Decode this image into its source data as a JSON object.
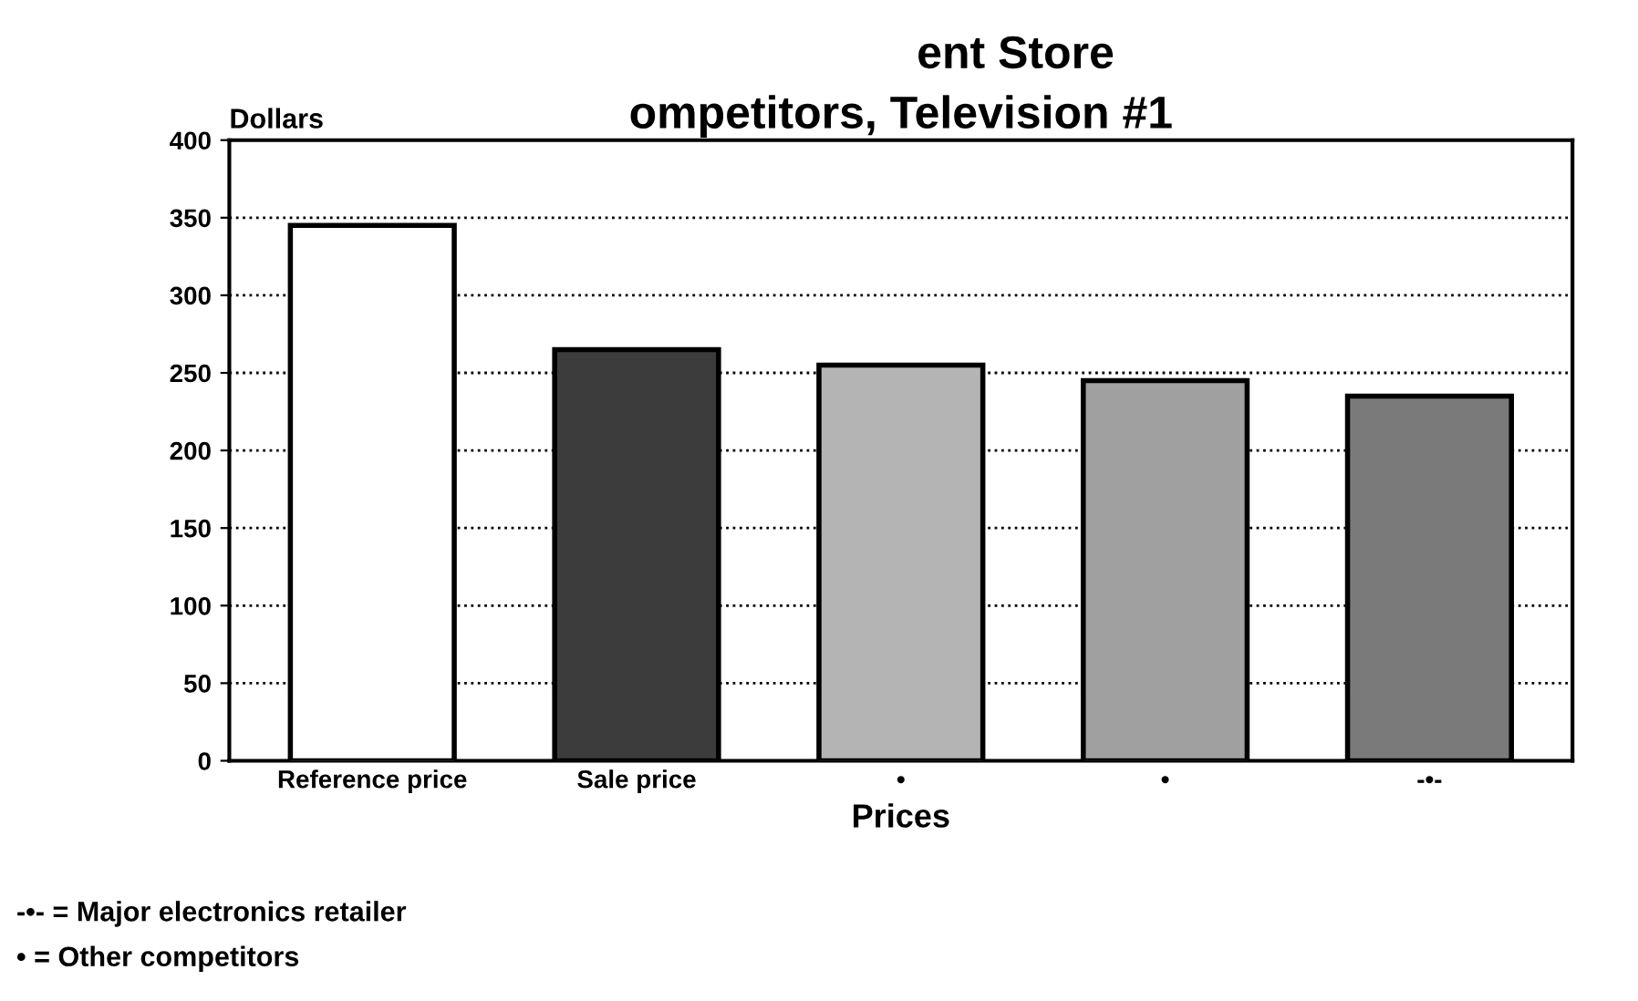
{
  "chart_data": {
    "type": "bar",
    "title": "ent Store",
    "subtitle": "ompetitors, Television #1",
    "categories": [
      "Reference price",
      "Sale price",
      "•",
      "•",
      "-•-"
    ],
    "values": [
      345,
      265,
      255,
      245,
      235
    ],
    "colors": [
      "#ffffff",
      "#3c3c3c",
      "#b4b4b4",
      "#a0a0a0",
      "#7a7a7a"
    ],
    "ylabel": "Dollars",
    "xlabel": "Prices",
    "ylim": [
      0,
      400
    ],
    "yticks": [
      0,
      50,
      100,
      150,
      200,
      250,
      300,
      350,
      400
    ],
    "grid": "y",
    "annotations": [
      "-•- = Major electronics retailer",
      "• = Other competitors"
    ]
  }
}
